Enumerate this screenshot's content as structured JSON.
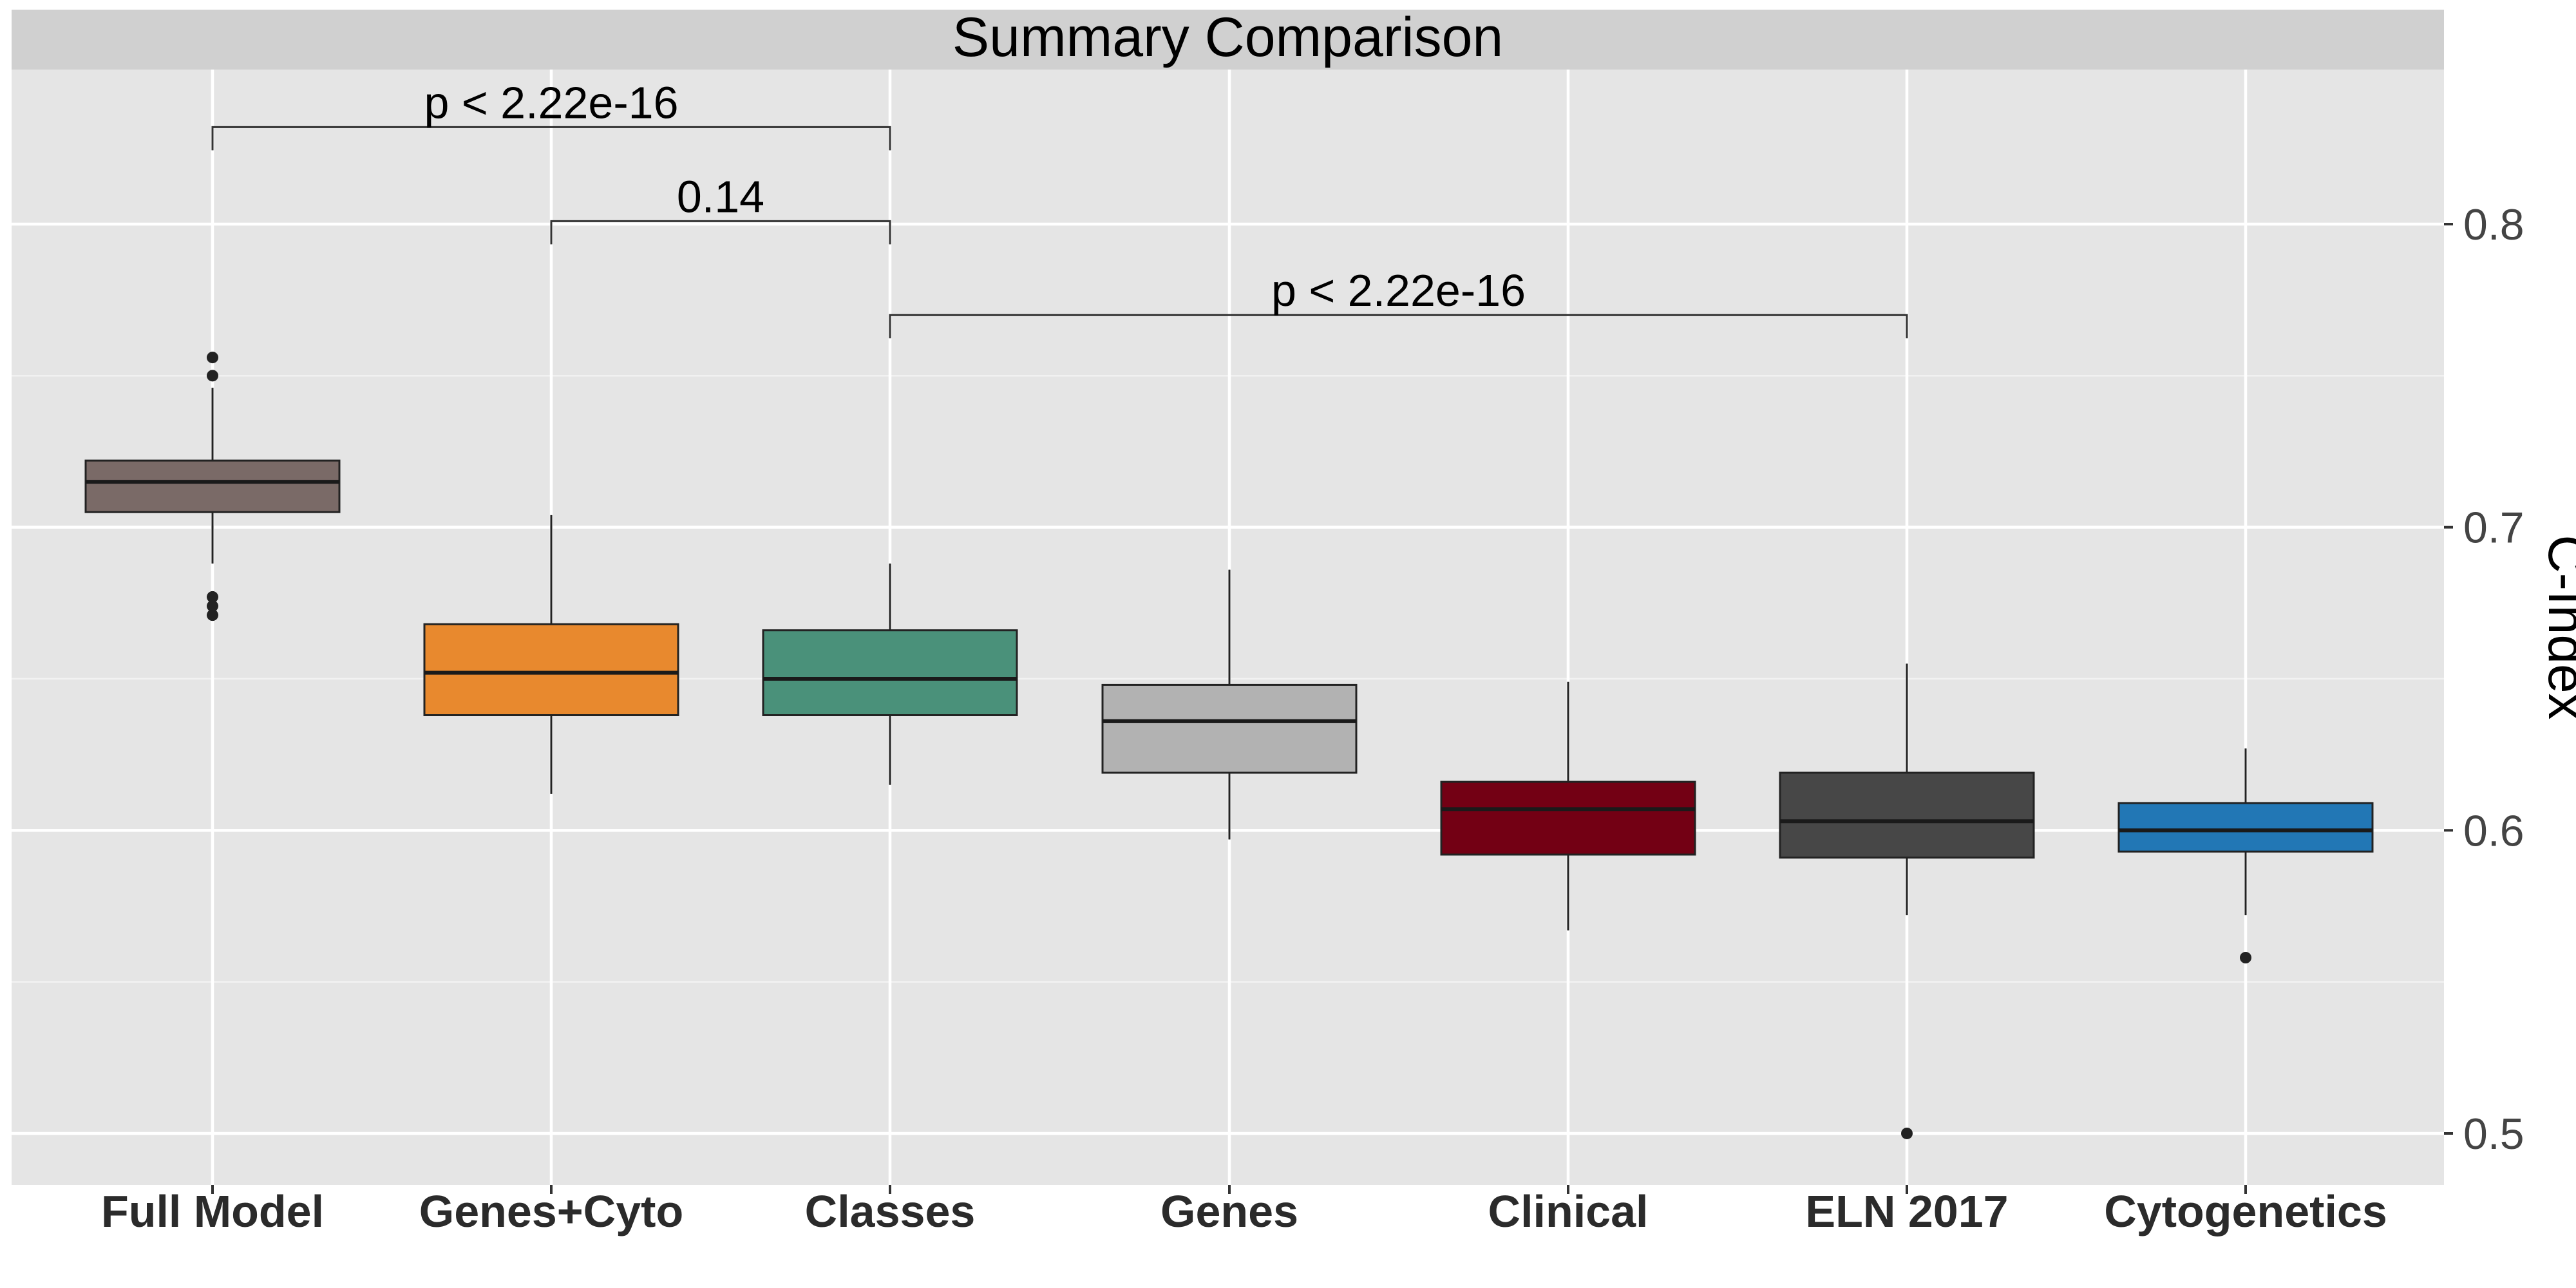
{
  "chart_data": {
    "type": "box",
    "title": "Summary Comparison",
    "ylabel": "C-Index",
    "xlabel": "",
    "y_axis_position": "right",
    "ylim": [
      0.483,
      0.851
    ],
    "yticks": [
      0.5,
      0.6,
      0.7,
      0.8
    ],
    "ytick_labels": [
      "0.5",
      "0.6",
      "0.7",
      "0.8"
    ],
    "grid": true,
    "categories": [
      "Full Model",
      "Genes+Cyto",
      "Classes",
      "Genes",
      "Clinical",
      "ELN 2017",
      "Cytogenetics"
    ],
    "boxes": [
      {
        "label": "Full Model",
        "color": "#7a6a67",
        "whisker_low": 0.688,
        "q1": 0.705,
        "median": 0.715,
        "q3": 0.722,
        "whisker_high": 0.746,
        "outliers": [
          0.671,
          0.674,
          0.677,
          0.75,
          0.756
        ]
      },
      {
        "label": "Genes+Cyto",
        "color": "#e8892e",
        "whisker_low": 0.612,
        "q1": 0.638,
        "median": 0.652,
        "q3": 0.668,
        "whisker_high": 0.704,
        "outliers": []
      },
      {
        "label": "Classes",
        "color": "#4a917a",
        "whisker_low": 0.615,
        "q1": 0.638,
        "median": 0.65,
        "q3": 0.666,
        "whisker_high": 0.688,
        "outliers": []
      },
      {
        "label": "Genes",
        "color": "#b2b2b2",
        "whisker_low": 0.597,
        "q1": 0.619,
        "median": 0.636,
        "q3": 0.648,
        "whisker_high": 0.686,
        "outliers": []
      },
      {
        "label": "Clinical",
        "color": "#730014",
        "whisker_low": 0.567,
        "q1": 0.592,
        "median": 0.607,
        "q3": 0.616,
        "whisker_high": 0.649,
        "outliers": []
      },
      {
        "label": "ELN 2017",
        "color": "#474747",
        "whisker_low": 0.572,
        "q1": 0.591,
        "median": 0.603,
        "q3": 0.619,
        "whisker_high": 0.655,
        "outliers": [
          0.5
        ]
      },
      {
        "label": "Cytogenetics",
        "color": "#2277b5",
        "whisker_low": 0.572,
        "q1": 0.593,
        "median": 0.6,
        "q3": 0.609,
        "whisker_high": 0.627,
        "outliers": [
          0.558
        ]
      }
    ],
    "comparisons": [
      {
        "from": "Full Model",
        "to": "Classes",
        "label": "p < 2.22e-16",
        "y": 0.832
      },
      {
        "from": "Genes+Cyto",
        "to": "Classes",
        "label": "0.14",
        "y": 0.801
      },
      {
        "from": "Classes",
        "to": "ELN 2017",
        "label": "p < 2.22e-16",
        "y": 0.77
      }
    ]
  }
}
